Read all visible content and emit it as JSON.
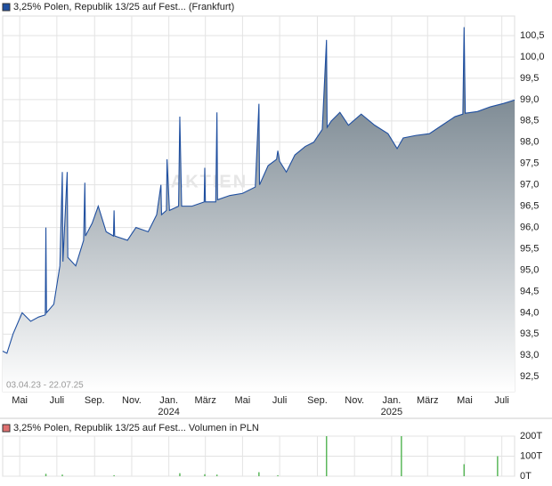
{
  "chart_data": [
    {
      "type": "line",
      "title": "3,25% Polen, Republik 13/25 auf Fest... (Frankfurt)",
      "watermark": "AKTIEN",
      "range_label": "03.04.23 - 22.07.25",
      "xlim": [
        "2023-04-03",
        "2025-07-22"
      ],
      "ylim": [
        92.15,
        100.96
      ],
      "yticks": [
        {
          "value": 92.5,
          "label": "92,5"
        },
        {
          "value": 93,
          "label": "93,0"
        },
        {
          "value": 93.5,
          "label": "93,5"
        },
        {
          "value": 94,
          "label": "94,0"
        },
        {
          "value": 94.5,
          "label": "94,5"
        },
        {
          "value": 95,
          "label": "95,0"
        },
        {
          "value": 95.5,
          "label": "95,5"
        },
        {
          "value": 96,
          "label": "96,0"
        },
        {
          "value": 96.5,
          "label": "96,5"
        },
        {
          "value": 97,
          "label": "97,0"
        },
        {
          "value": 97.5,
          "label": "97,5"
        },
        {
          "value": 98,
          "label": "98,0"
        },
        {
          "value": 98.5,
          "label": "98,5"
        },
        {
          "value": 99,
          "label": "99,0"
        },
        {
          "value": 99.5,
          "label": "99,5"
        },
        {
          "value": 100,
          "label": "100,0"
        },
        {
          "value": 100.5,
          "label": "100,5"
        }
      ],
      "xticks": [
        {
          "value": "2023-05-01",
          "label": "Mai"
        },
        {
          "value": "2023-07-01",
          "label": "Juli"
        },
        {
          "value": "2023-09-01",
          "label": "Sep."
        },
        {
          "value": "2023-11-01",
          "label": "Nov."
        },
        {
          "value": "2024-01-01",
          "label": "Jan."
        },
        {
          "value": "2024-03-01",
          "label": "März"
        },
        {
          "value": "2024-05-01",
          "label": "Mai"
        },
        {
          "value": "2024-07-01",
          "label": "Juli"
        },
        {
          "value": "2024-09-01",
          "label": "Sep."
        },
        {
          "value": "2024-11-01",
          "label": "Nov."
        },
        {
          "value": "2025-01-01",
          "label": "Jan."
        },
        {
          "value": "2025-03-01",
          "label": "März"
        },
        {
          "value": "2025-05-01",
          "label": "Mai"
        },
        {
          "value": "2025-07-01",
          "label": "Juli"
        }
      ],
      "x_year_labels": [
        {
          "value": "2024-01-01",
          "label": "2024"
        },
        {
          "value": "2025-01-01",
          "label": "2025"
        }
      ],
      "grid": true,
      "legend_color": "#1f4fa0",
      "series": [
        {
          "color": "#1f4fa0",
          "x": [
            "2023-04-03",
            "2023-04-10",
            "2023-04-20",
            "2023-05-05",
            "2023-05-19",
            "2023-06-01",
            "2023-06-12",
            "2023-06-13",
            "2023-06-14",
            "2023-06-26",
            "2023-07-06",
            "2023-07-10",
            "2023-07-11",
            "2023-07-18",
            "2023-07-19",
            "2023-08-01",
            "2023-08-14",
            "2023-08-16",
            "2023-08-17",
            "2023-08-28",
            "2023-09-07",
            "2023-09-20",
            "2023-10-02",
            "2023-10-03",
            "2023-10-04",
            "2023-10-25",
            "2023-11-08",
            "2023-11-28",
            "2023-12-12",
            "2023-12-19",
            "2023-12-20",
            "2023-12-28",
            "2023-12-29",
            "2024-01-02",
            "2024-01-17",
            "2024-01-19",
            "2024-01-22",
            "2024-02-08",
            "2024-02-28",
            "2024-02-29",
            "2024-03-01",
            "2024-03-18",
            "2024-03-20",
            "2024-03-21",
            "2024-04-10",
            "2024-05-01",
            "2024-05-22",
            "2024-05-28",
            "2024-05-29",
            "2024-06-12",
            "2024-06-26",
            "2024-06-28",
            "2024-07-01",
            "2024-07-12",
            "2024-07-26",
            "2024-08-12",
            "2024-08-26",
            "2024-09-09",
            "2024-09-16",
            "2024-09-17",
            "2024-09-24",
            "2024-10-08",
            "2024-10-22",
            "2024-11-12",
            "2024-12-04",
            "2024-12-26",
            "2025-01-10",
            "2025-01-20",
            "2025-02-10",
            "2025-03-04",
            "2025-03-25",
            "2025-04-15",
            "2025-04-28",
            "2025-04-30",
            "2025-05-02",
            "2025-05-22",
            "2025-06-12",
            "2025-07-04",
            "2025-07-22"
          ],
          "values": [
            93.1,
            93.05,
            93.5,
            94.0,
            93.8,
            93.9,
            93.95,
            96.0,
            94.0,
            94.2,
            95.1,
            97.3,
            95.2,
            97.3,
            95.3,
            95.1,
            95.7,
            97.05,
            95.8,
            96.1,
            96.5,
            95.9,
            95.8,
            96.4,
            95.8,
            95.7,
            96.0,
            95.9,
            96.3,
            97.0,
            96.3,
            96.4,
            97.6,
            96.4,
            96.5,
            98.6,
            96.5,
            96.5,
            96.6,
            97.4,
            96.6,
            96.6,
            98.7,
            96.65,
            96.75,
            96.8,
            96.95,
            98.9,
            97.0,
            97.45,
            97.6,
            97.8,
            97.55,
            97.3,
            97.7,
            97.9,
            98.0,
            98.3,
            100.4,
            98.35,
            98.5,
            98.7,
            98.4,
            98.66,
            98.4,
            98.2,
            97.85,
            98.1,
            98.16,
            98.2,
            98.4,
            98.6,
            98.66,
            100.7,
            98.68,
            98.72,
            98.83,
            98.91,
            98.99
          ]
        }
      ]
    },
    {
      "type": "bar",
      "title": "3,25% Polen, Republik 13/25 auf Fest... Volumen in PLN",
      "xlim": [
        "2023-04-03",
        "2025-07-22"
      ],
      "ylim": [
        0,
        200000
      ],
      "yticks": [
        {
          "value": 0,
          "label": "0T"
        },
        {
          "value": 100000,
          "label": "100T"
        },
        {
          "value": 200000,
          "label": "200T"
        }
      ],
      "grid": true,
      "legend_color": "#d9534f",
      "series": [
        {
          "color": "#5cb85c",
          "x": [
            "2023-06-13",
            "2023-07-10",
            "2023-10-03",
            "2024-01-19",
            "2024-02-29",
            "2024-03-20",
            "2024-05-28",
            "2024-06-28",
            "2024-09-16",
            "2025-01-17",
            "2025-04-30",
            "2025-06-24"
          ],
          "values": [
            12000,
            8000,
            5000,
            15000,
            10000,
            8000,
            20000,
            5000,
            200000,
            200000,
            60000,
            100000
          ]
        }
      ]
    }
  ]
}
